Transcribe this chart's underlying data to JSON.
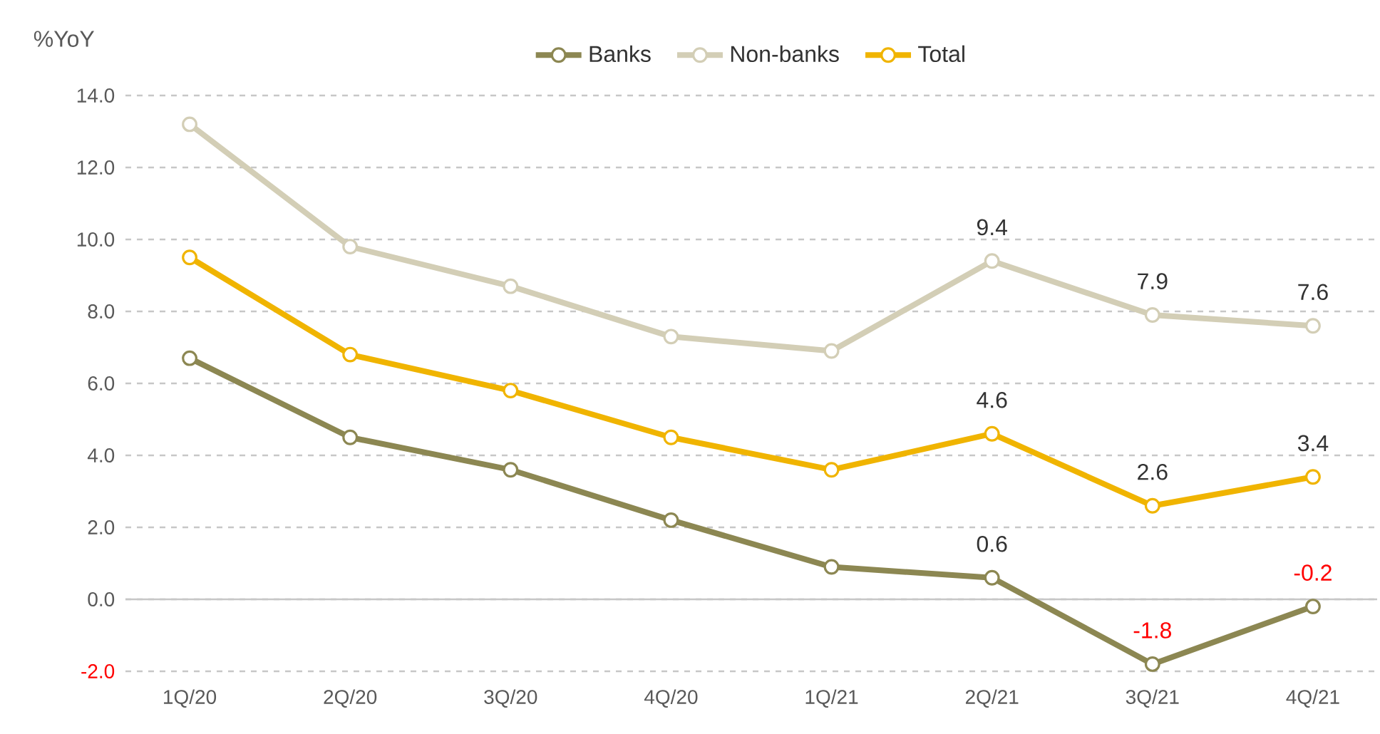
{
  "chart_data": {
    "type": "line",
    "ylabel": "%YoY",
    "categories": [
      "1Q/20",
      "2Q/20",
      "3Q/20",
      "4Q/20",
      "1Q/21",
      "2Q/21",
      "3Q/21",
      "4Q/21"
    ],
    "series": [
      {
        "name": "Banks",
        "color": "#8c8752",
        "values": [
          6.7,
          4.5,
          3.6,
          2.2,
          0.9,
          0.6,
          -1.8,
          -0.2
        ],
        "value_labels": [
          null,
          null,
          null,
          null,
          null,
          "0.6",
          "-1.8",
          "-0.2"
        ]
      },
      {
        "name": "Non-banks",
        "color": "#d3ceb6",
        "values": [
          13.2,
          9.8,
          8.7,
          7.3,
          6.9,
          9.4,
          7.9,
          7.6
        ],
        "value_labels": [
          null,
          null,
          null,
          null,
          null,
          "9.4",
          "7.9",
          "7.6"
        ]
      },
      {
        "name": "Total",
        "color": "#f0b400",
        "values": [
          9.5,
          6.8,
          5.8,
          4.5,
          3.6,
          4.6,
          2.6,
          3.4
        ],
        "value_labels": [
          null,
          null,
          null,
          null,
          null,
          "4.6",
          "2.6",
          "3.4"
        ]
      }
    ],
    "ylim": [
      -2,
      14
    ],
    "yticks": [
      {
        "value": -2,
        "label": "-2.0"
      },
      {
        "value": 0,
        "label": "0.0"
      },
      {
        "value": 2,
        "label": "2.0"
      },
      {
        "value": 4,
        "label": "4.0"
      },
      {
        "value": 6,
        "label": "6.0"
      },
      {
        "value": 8,
        "label": "8.0"
      },
      {
        "value": 10,
        "label": "10.0"
      },
      {
        "value": 12,
        "label": "12.0"
      },
      {
        "value": 14,
        "label": "14.0"
      }
    ],
    "grid": "y",
    "legend": "top",
    "marker": "circle",
    "line_style": "solid"
  }
}
